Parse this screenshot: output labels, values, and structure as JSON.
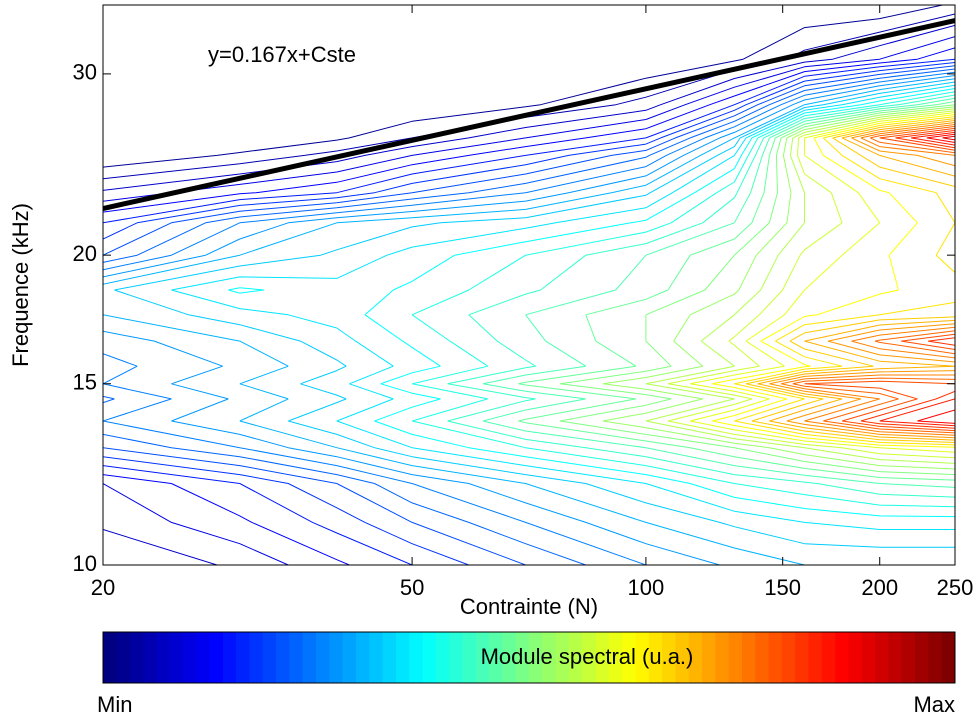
{
  "chart_data": {
    "type": "contour",
    "x_label": "Contrainte (N)",
    "y_label": "Frequence (kHz)",
    "annotation": "y=0.167x+Cste",
    "xscale": "log",
    "yscale": "log",
    "xlim": [
      20,
      250
    ],
    "ylim": [
      10,
      35
    ],
    "xticks": [
      20,
      50,
      100,
      150,
      200,
      250
    ],
    "yticks": [
      10,
      15,
      20,
      30
    ],
    "colormap": "jet",
    "x": [
      20,
      30,
      40,
      50,
      70,
      100,
      130,
      160,
      200,
      250
    ],
    "y": [
      10,
      11,
      12,
      13,
      13.8,
      14.5,
      15,
      15.6,
      16.5,
      17.5,
      18.5,
      20,
      21.5,
      23,
      25,
      26,
      28,
      31,
      35
    ],
    "z": [
      [
        0.05,
        0.08,
        0.12,
        0.15,
        0.2,
        0.25,
        0.28,
        0.3,
        0.3,
        0.3
      ],
      [
        0.08,
        0.12,
        0.16,
        0.2,
        0.25,
        0.3,
        0.33,
        0.35,
        0.36,
        0.36
      ],
      [
        0.1,
        0.15,
        0.2,
        0.25,
        0.3,
        0.35,
        0.4,
        0.42,
        0.45,
        0.46
      ],
      [
        0.2,
        0.25,
        0.3,
        0.35,
        0.4,
        0.45,
        0.5,
        0.55,
        0.6,
        0.62
      ],
      [
        0.25,
        0.3,
        0.35,
        0.4,
        0.48,
        0.55,
        0.65,
        0.75,
        0.85,
        0.9
      ],
      [
        0.22,
        0.28,
        0.32,
        0.36,
        0.42,
        0.48,
        0.55,
        0.65,
        0.75,
        0.85
      ],
      [
        0.25,
        0.3,
        0.34,
        0.4,
        0.48,
        0.55,
        0.65,
        0.8,
        0.82,
        0.8
      ],
      [
        0.24,
        0.28,
        0.32,
        0.36,
        0.42,
        0.48,
        0.55,
        0.62,
        0.68,
        0.7
      ],
      [
        0.26,
        0.3,
        0.34,
        0.38,
        0.44,
        0.5,
        0.58,
        0.7,
        0.78,
        0.85
      ],
      [
        0.3,
        0.34,
        0.36,
        0.4,
        0.45,
        0.5,
        0.55,
        0.62,
        0.65,
        0.66
      ],
      [
        0.32,
        0.38,
        0.36,
        0.38,
        0.42,
        0.46,
        0.52,
        0.6,
        0.62,
        0.64
      ],
      [
        0.2,
        0.3,
        0.33,
        0.36,
        0.4,
        0.45,
        0.5,
        0.58,
        0.62,
        0.66
      ],
      [
        0.15,
        0.25,
        0.3,
        0.32,
        0.34,
        0.38,
        0.45,
        0.55,
        0.6,
        0.65
      ],
      [
        0.08,
        0.12,
        0.15,
        0.2,
        0.25,
        0.32,
        0.42,
        0.55,
        0.62,
        0.66
      ],
      [
        0,
        0.03,
        0.06,
        0.1,
        0.15,
        0.22,
        0.35,
        0.6,
        0.7,
        0.75
      ],
      [
        0,
        0,
        0.02,
        0.05,
        0.1,
        0.15,
        0.3,
        0.6,
        0.8,
        0.92
      ],
      [
        0,
        0,
        0,
        0,
        0.02,
        0.06,
        0.15,
        0.3,
        0.4,
        0.5
      ],
      [
        0,
        0,
        0,
        0,
        0,
        0,
        0.02,
        0.06,
        0.1,
        0.15
      ],
      [
        0,
        0,
        0,
        0,
        0,
        0,
        0,
        0,
        0,
        0.03
      ]
    ],
    "levels": [
      0.025,
      0.05,
      0.075,
      0.1,
      0.125,
      0.15,
      0.175,
      0.2,
      0.225,
      0.25,
      0.275,
      0.3,
      0.325,
      0.35,
      0.375,
      0.4,
      0.425,
      0.45,
      0.475,
      0.5,
      0.525,
      0.55,
      0.575,
      0.6,
      0.625,
      0.65,
      0.675,
      0.7,
      0.725,
      0.75,
      0.775,
      0.8,
      0.825,
      0.85,
      0.875,
      0.9,
      0.925,
      0.95,
      0.975
    ],
    "fit": {
      "x": [
        20,
        250
      ],
      "y": [
        22.2,
        33.8
      ],
      "color": "#000000"
    },
    "colorbar": {
      "label": "Module spectral (u.a.)",
      "min_label": "Min",
      "max_label": "Max"
    }
  }
}
